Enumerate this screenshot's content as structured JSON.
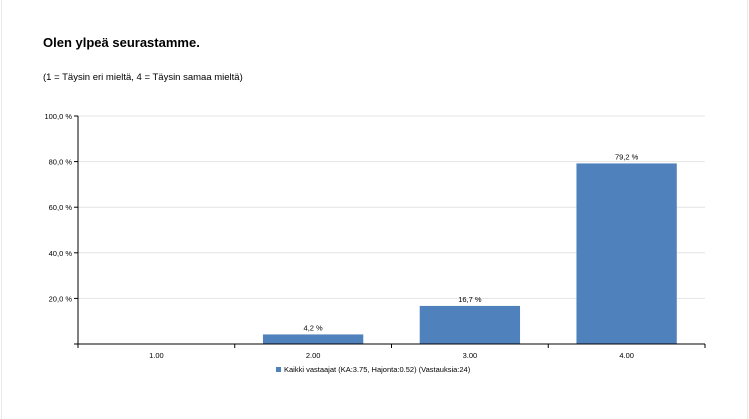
{
  "title": "Olen ylpeä seurastamme.",
  "subtitle": "(1 = Täysin eri mieltä, 4 = Täysin samaa mieltä)",
  "colors": {
    "bar": "#4f81bd",
    "grid": "#e4e4e4",
    "axis": "#000000"
  },
  "chart_data": {
    "type": "bar",
    "categories": [
      "1.00",
      "2.00",
      "3.00",
      "4.00"
    ],
    "series": [
      {
        "name": "Kaikki vastaajat (KA:3.75, Hajonta:0.52) (Vastauksia:24)",
        "values": [
          0,
          4.2,
          16.7,
          79.2
        ]
      }
    ],
    "data_labels": [
      "",
      "4,2 %",
      "16,7 %",
      "79,2 %"
    ],
    "y_ticks": [
      20,
      40,
      60,
      80,
      100
    ],
    "y_tick_labels": [
      "20,0 %",
      "40,0 %",
      "60,0 %",
      "80,0 %",
      "100,0 %"
    ],
    "ylim": [
      0,
      100
    ],
    "grid": true,
    "legend_position": "bottom"
  }
}
